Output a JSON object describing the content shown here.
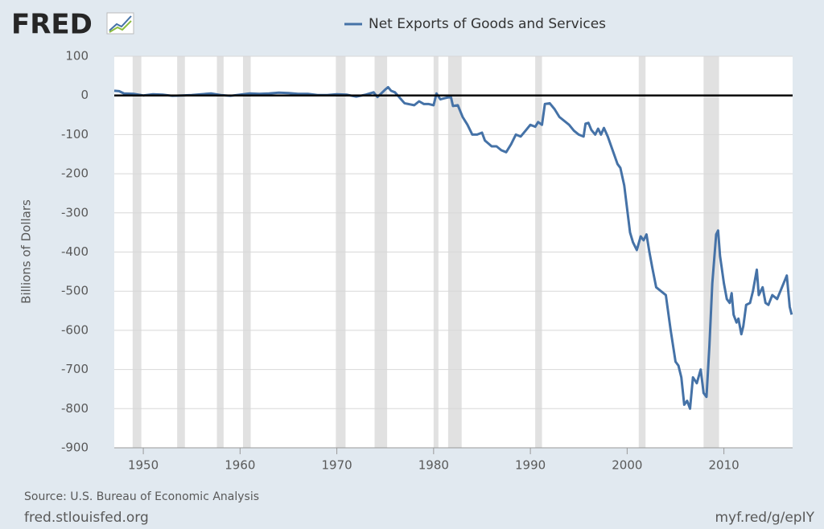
{
  "logo": "FRED",
  "source": "Source: U.S. Bureau of Economic Analysis",
  "site": "fred.stlouisfed.org",
  "short_link": "myf.red/g/epIY",
  "chart_data": {
    "type": "line",
    "y_label": "Billions of Dollars",
    "xlim": [
      1947,
      2017.1
    ],
    "xticks": [
      1950,
      1960,
      1970,
      1980,
      1990,
      2000,
      2010
    ],
    "ylim": [
      -900,
      100
    ],
    "yticks": [
      100,
      0,
      -100,
      -200,
      -300,
      -400,
      -500,
      -600,
      -700,
      -800,
      -900
    ],
    "grid": true,
    "hline": 0,
    "recessions": [
      [
        1948.9,
        1949.8
      ],
      [
        1953.5,
        1954.3
      ],
      [
        1957.6,
        1958.3
      ],
      [
        1960.3,
        1961.1
      ],
      [
        1969.9,
        1970.9
      ],
      [
        1973.9,
        1975.2
      ],
      [
        1980.0,
        1980.5
      ],
      [
        1981.5,
        1982.9
      ],
      [
        1990.5,
        1991.2
      ],
      [
        2001.2,
        2001.9
      ],
      [
        2007.9,
        2009.5
      ]
    ],
    "series": [
      {
        "name": "Net Exports of Goods and Services",
        "color": "#4572a7",
        "x": [
          1947.0,
          1947.5,
          1948,
          1949,
          1950,
          1951,
          1952,
          1953,
          1954,
          1955,
          1956,
          1957,
          1958,
          1959,
          1960,
          1961,
          1962,
          1963,
          1964,
          1965,
          1966,
          1967,
          1968,
          1969,
          1970,
          1971,
          1972,
          1973,
          1973.8,
          1974.2,
          1975,
          1975.3,
          1975.6,
          1976,
          1977,
          1978,
          1978.5,
          1979,
          1979.5,
          1980,
          1980.3,
          1980.7,
          1981,
          1981.5,
          1981.8,
          1982,
          1982.5,
          1983,
          1983.5,
          1984,
          1984.5,
          1985,
          1985.3,
          1986,
          1986.5,
          1987,
          1987.5,
          1988,
          1988.5,
          1989,
          1989.5,
          1990,
          1990.5,
          1990.8,
          1991.2,
          1991.5,
          1992,
          1992.5,
          1993,
          1994,
          1994.5,
          1995,
          1995.5,
          1995.7,
          1996,
          1996.3,
          1996.7,
          1997,
          1997.3,
          1997.6,
          1998,
          1998.5,
          1999,
          1999.3,
          1999.7,
          2000,
          2000.3,
          2000.6,
          2001,
          2001.4,
          2001.7,
          2002,
          2002.3,
          2002.6,
          2003,
          2003.5,
          2004,
          2004.5,
          2005,
          2005.3,
          2005.6,
          2005.9,
          2006.2,
          2006.5,
          2006.8,
          2007.2,
          2007.6,
          2007.9,
          2008.2,
          2008.5,
          2008.8,
          2009.2,
          2009.4,
          2009.6,
          2010,
          2010.3,
          2010.6,
          2010.8,
          2011,
          2011.3,
          2011.5,
          2011.8,
          2012,
          2012.3,
          2012.7,
          2013,
          2013.4,
          2013.6,
          2014,
          2014.3,
          2014.6,
          2015,
          2015.5,
          2016,
          2016.5,
          2016.8,
          2017
        ],
        "values": [
          12,
          11,
          5,
          4,
          0,
          3,
          2,
          -1,
          0,
          1,
          3,
          5,
          1,
          -1,
          2,
          5,
          4,
          5,
          7,
          6,
          4,
          4,
          1,
          1,
          3,
          2,
          -3,
          2,
          8,
          -4,
          15,
          21,
          12,
          8,
          -20,
          -25,
          -15,
          -22,
          -22,
          -25,
          5,
          -10,
          -8,
          -5,
          -5,
          -27,
          -25,
          -55,
          -75,
          -100,
          -100,
          -95,
          -115,
          -130,
          -130,
          -140,
          -145,
          -125,
          -100,
          -105,
          -90,
          -75,
          -80,
          -68,
          -75,
          -22,
          -20,
          -35,
          -55,
          -75,
          -90,
          -100,
          -105,
          -72,
          -70,
          -88,
          -100,
          -85,
          -100,
          -83,
          -105,
          -140,
          -175,
          -185,
          -230,
          -290,
          -350,
          -375,
          -395,
          -360,
          -370,
          -355,
          -400,
          -440,
          -490,
          -500,
          -510,
          -600,
          -680,
          -690,
          -720,
          -790,
          -780,
          -800,
          -720,
          -735,
          -700,
          -760,
          -770,
          -640,
          -480,
          -355,
          -345,
          -410,
          -480,
          -520,
          -530,
          -505,
          -560,
          -580,
          -570,
          -610,
          -590,
          -535,
          -530,
          -500,
          -445,
          -510,
          -490,
          -530,
          -535,
          -510,
          -520,
          -490,
          -460,
          -540,
          -560
        ]
      }
    ]
  }
}
